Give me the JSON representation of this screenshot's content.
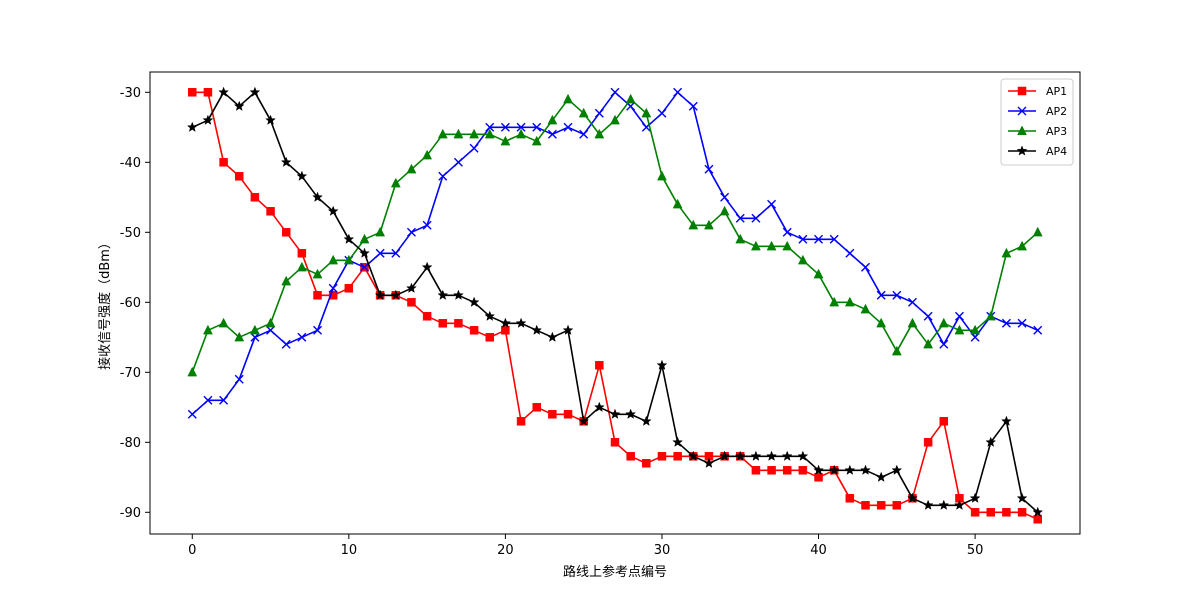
{
  "chart_data": {
    "type": "line",
    "title": "",
    "xlabel": "路线上参考点编号",
    "ylabel": "接收信号强度（dBm）",
    "xlim": [
      -2.7,
      56.7
    ],
    "ylim": [
      -93.1,
      -27.1
    ],
    "xticks": [
      0,
      10,
      20,
      30,
      40,
      50
    ],
    "yticks": [
      -90,
      -80,
      -70,
      -60,
      -50,
      -40,
      -30
    ],
    "grid": false,
    "legend_position": "top-right",
    "x": [
      0,
      1,
      2,
      3,
      4,
      5,
      6,
      7,
      8,
      9,
      10,
      11,
      12,
      13,
      14,
      15,
      16,
      17,
      18,
      19,
      20,
      21,
      22,
      23,
      24,
      25,
      26,
      27,
      28,
      29,
      30,
      31,
      32,
      33,
      34,
      35,
      36,
      37,
      38,
      39,
      40,
      41,
      42,
      43,
      44,
      45,
      46,
      47,
      48,
      49,
      50,
      51,
      52,
      53,
      54
    ],
    "series": [
      {
        "name": "AP1",
        "color": "#ff0000",
        "marker": "square",
        "values": [
          -30,
          -30,
          -40,
          -42,
          -45,
          -47,
          -50,
          -53,
          -59,
          -59,
          -58,
          -55,
          -59,
          -59,
          -60,
          -62,
          -63,
          -63,
          -64,
          -65,
          -64,
          -77,
          -75,
          -76,
          -76,
          -77,
          -69,
          -80,
          -82,
          -83,
          -82,
          -82,
          -82,
          -82,
          -82,
          -82,
          -84,
          -84,
          -84,
          -84,
          -85,
          -84,
          -88,
          -89,
          -89,
          -89,
          -88,
          -80,
          -77,
          -88,
          -90,
          -90,
          -90,
          -90,
          -91
        ]
      },
      {
        "name": "AP2",
        "color": "#0000ff",
        "marker": "x",
        "values": [
          -76,
          -74,
          -74,
          -71,
          -65,
          -64,
          -66,
          -65,
          -64,
          -58,
          -54,
          -55,
          -53,
          -53,
          -50,
          -49,
          -42,
          -40,
          -38,
          -35,
          -35,
          -35,
          -35,
          -36,
          -35,
          -36,
          -33,
          -30,
          -32,
          -35,
          -33,
          -30,
          -32,
          -41,
          -45,
          -48,
          -48,
          -46,
          -50,
          -51,
          -51,
          -51,
          -53,
          -55,
          -59,
          -59,
          -60,
          -62,
          -66,
          -62,
          -65,
          -62,
          -63,
          -63,
          -64
        ]
      },
      {
        "name": "AP3",
        "color": "#008000",
        "marker": "triangle",
        "values": [
          -70,
          -64,
          -63,
          -65,
          -64,
          -63,
          -57,
          -55,
          -56,
          -54,
          -54,
          -51,
          -50,
          -43,
          -41,
          -39,
          -36,
          -36,
          -36,
          -36,
          -37,
          -36,
          -37,
          -34,
          -31,
          -33,
          -36,
          -34,
          -31,
          -33,
          -42,
          -46,
          -49,
          -49,
          -47,
          -51,
          -52,
          -52,
          -52,
          -54,
          -56,
          -60,
          -60,
          -61,
          -63,
          -67,
          -63,
          -66,
          -63,
          -64,
          -64,
          -62,
          -53,
          -52,
          -50
        ]
      },
      {
        "name": "AP4",
        "color": "#000000",
        "marker": "star",
        "values": [
          -35,
          -34,
          -30,
          -32,
          -30,
          -34,
          -40,
          -42,
          -45,
          -47,
          -51,
          -53,
          -59,
          -59,
          -58,
          -55,
          -59,
          -59,
          -60,
          -62,
          -63,
          -63,
          -64,
          -65,
          -64,
          -77,
          -75,
          -76,
          -76,
          -77,
          -69,
          -80,
          -82,
          -83,
          -82,
          -82,
          -82,
          -82,
          -82,
          -82,
          -84,
          -84,
          -84,
          -84,
          -85,
          -84,
          -88,
          -89,
          -89,
          -89,
          -88,
          -80,
          -77,
          -88,
          -90
        ]
      }
    ]
  }
}
